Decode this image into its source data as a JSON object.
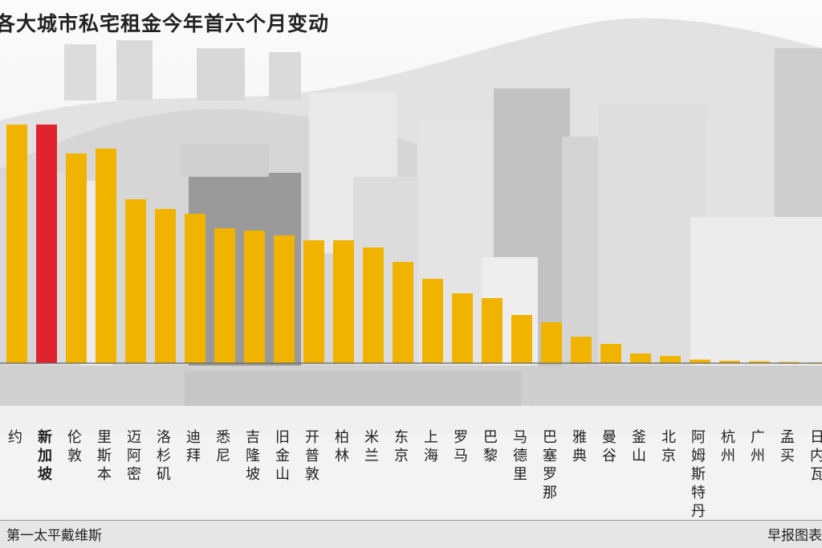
{
  "title": "各大城市私宅租金今年首六个月变动",
  "source_left": "第一太平戴维斯",
  "source_right": "早报图表",
  "colors": {
    "bar": "#F0B400",
    "highlight": "#E0242F",
    "axis": "#666666"
  },
  "chart_data": {
    "type": "bar",
    "title": "各大城市私宅租金今年首六个月变动",
    "xlabel": "",
    "ylabel": "",
    "ylim": [
      0,
      100
    ],
    "highlight": "新加坡",
    "categories": [
      "纽约",
      "新加坡",
      "伦敦",
      "里斯本",
      "迈阿密",
      "洛杉矶",
      "迪拜",
      "悉尼",
      "吉隆坡",
      "旧金山",
      "开普敦",
      "柏林",
      "米兰",
      "东京",
      "上海",
      "罗马",
      "巴黎",
      "马德里",
      "巴塞罗那",
      "雅典",
      "曼谷",
      "釜山",
      "北京",
      "阿姆斯特丹",
      "杭州",
      "广州",
      "孟买",
      "日内瓦"
    ],
    "values": [
      99,
      99,
      87,
      89,
      68,
      64,
      62,
      56,
      55,
      53,
      51,
      51,
      48,
      42,
      35,
      29,
      27,
      20,
      17,
      11,
      8,
      4,
      3,
      1.5,
      1,
      0.8,
      0.5,
      0.3
    ]
  }
}
